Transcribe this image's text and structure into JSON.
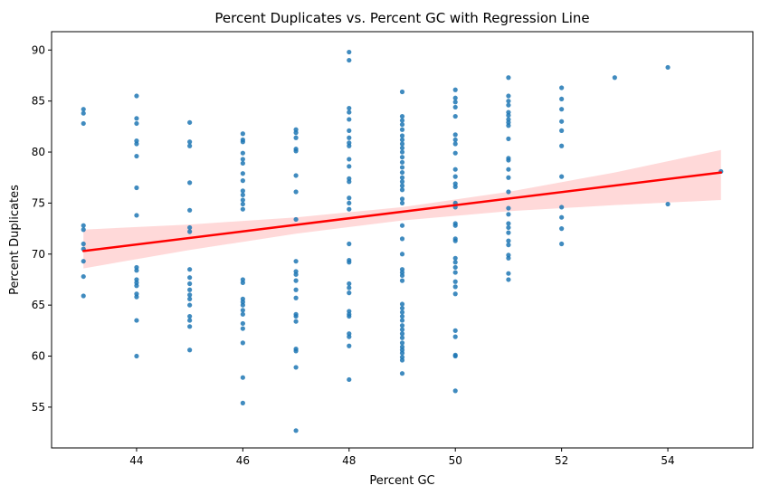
{
  "chart_data": {
    "type": "scatter",
    "title": "Percent Duplicates vs. Percent GC with Regression Line",
    "xlabel": "Percent GC",
    "ylabel": "Percent Duplicates",
    "xlim": [
      42.4,
      55.6
    ],
    "ylim": [
      51.0,
      91.8
    ],
    "xticks": [
      44,
      46,
      48,
      50,
      52,
      54
    ],
    "yticks": [
      55,
      60,
      65,
      70,
      75,
      80,
      85,
      90
    ],
    "grid": false,
    "legend": "none",
    "colors": {
      "points": "#1f77b4",
      "regression_line": "#ff0000",
      "confidence_band": "#ffcccc"
    },
    "regression": {
      "x": [
        43,
        55
      ],
      "y": [
        70.3,
        78.0
      ]
    },
    "confidence_band": {
      "x": [
        43,
        45,
        47,
        49,
        51,
        53,
        55
      ],
      "upper": [
        72.4,
        72.9,
        73.6,
        74.6,
        76.1,
        78.0,
        80.2
      ],
      "lower": [
        68.6,
        70.4,
        72.0,
        73.3,
        74.2,
        74.8,
        75.3
      ]
    },
    "points": [
      {
        "x": 43,
        "y": 84.2
      },
      {
        "x": 43,
        "y": 83.8
      },
      {
        "x": 43,
        "y": 82.8
      },
      {
        "x": 43,
        "y": 72.8
      },
      {
        "x": 43,
        "y": 72.4
      },
      {
        "x": 43,
        "y": 71.0
      },
      {
        "x": 43,
        "y": 70.5
      },
      {
        "x": 43,
        "y": 69.3
      },
      {
        "x": 43,
        "y": 67.8
      },
      {
        "x": 43,
        "y": 65.9
      },
      {
        "x": 44,
        "y": 85.5
      },
      {
        "x": 44,
        "y": 83.3
      },
      {
        "x": 44,
        "y": 82.8
      },
      {
        "x": 44,
        "y": 81.1
      },
      {
        "x": 44,
        "y": 80.8
      },
      {
        "x": 44,
        "y": 79.6
      },
      {
        "x": 44,
        "y": 76.5
      },
      {
        "x": 44,
        "y": 73.8
      },
      {
        "x": 44,
        "y": 68.7
      },
      {
        "x": 44,
        "y": 68.4
      },
      {
        "x": 44,
        "y": 67.5
      },
      {
        "x": 44,
        "y": 67.2
      },
      {
        "x": 44,
        "y": 66.9
      },
      {
        "x": 44,
        "y": 66.1
      },
      {
        "x": 44,
        "y": 65.8
      },
      {
        "x": 44,
        "y": 63.5
      },
      {
        "x": 44,
        "y": 60.0
      },
      {
        "x": 45,
        "y": 82.9
      },
      {
        "x": 45,
        "y": 81.0
      },
      {
        "x": 45,
        "y": 80.6
      },
      {
        "x": 45,
        "y": 77.0
      },
      {
        "x": 45,
        "y": 74.3
      },
      {
        "x": 45,
        "y": 72.6
      },
      {
        "x": 45,
        "y": 72.2
      },
      {
        "x": 45,
        "y": 68.5
      },
      {
        "x": 45,
        "y": 67.7
      },
      {
        "x": 45,
        "y": 67.1
      },
      {
        "x": 45,
        "y": 66.5
      },
      {
        "x": 45,
        "y": 66.0
      },
      {
        "x": 45,
        "y": 65.6
      },
      {
        "x": 45,
        "y": 65.0
      },
      {
        "x": 45,
        "y": 63.9
      },
      {
        "x": 45,
        "y": 63.5
      },
      {
        "x": 45,
        "y": 62.9
      },
      {
        "x": 45,
        "y": 60.6
      },
      {
        "x": 46,
        "y": 81.8
      },
      {
        "x": 46,
        "y": 81.2
      },
      {
        "x": 46,
        "y": 81.0
      },
      {
        "x": 46,
        "y": 79.9
      },
      {
        "x": 46,
        "y": 79.3
      },
      {
        "x": 46,
        "y": 78.9
      },
      {
        "x": 46,
        "y": 77.9
      },
      {
        "x": 46,
        "y": 77.2
      },
      {
        "x": 46,
        "y": 76.2
      },
      {
        "x": 46,
        "y": 75.8
      },
      {
        "x": 46,
        "y": 75.3
      },
      {
        "x": 46,
        "y": 74.9
      },
      {
        "x": 46,
        "y": 74.4
      },
      {
        "x": 46,
        "y": 67.5
      },
      {
        "x": 46,
        "y": 67.2
      },
      {
        "x": 46,
        "y": 65.6
      },
      {
        "x": 46,
        "y": 65.3
      },
      {
        "x": 46,
        "y": 65.0
      },
      {
        "x": 46,
        "y": 64.5
      },
      {
        "x": 46,
        "y": 64.1
      },
      {
        "x": 46,
        "y": 63.2
      },
      {
        "x": 46,
        "y": 62.7
      },
      {
        "x": 46,
        "y": 61.3
      },
      {
        "x": 46,
        "y": 57.9
      },
      {
        "x": 46,
        "y": 55.4
      },
      {
        "x": 47,
        "y": 82.2
      },
      {
        "x": 47,
        "y": 81.9
      },
      {
        "x": 47,
        "y": 81.4
      },
      {
        "x": 47,
        "y": 80.3
      },
      {
        "x": 47,
        "y": 80.1
      },
      {
        "x": 47,
        "y": 77.7
      },
      {
        "x": 47,
        "y": 76.1
      },
      {
        "x": 47,
        "y": 73.4
      },
      {
        "x": 47,
        "y": 69.3
      },
      {
        "x": 47,
        "y": 68.3
      },
      {
        "x": 47,
        "y": 68.0
      },
      {
        "x": 47,
        "y": 67.4
      },
      {
        "x": 47,
        "y": 66.5
      },
      {
        "x": 47,
        "y": 65.7
      },
      {
        "x": 47,
        "y": 64.1
      },
      {
        "x": 47,
        "y": 63.9
      },
      {
        "x": 47,
        "y": 63.4
      },
      {
        "x": 47,
        "y": 60.7
      },
      {
        "x": 47,
        "y": 60.5
      },
      {
        "x": 47,
        "y": 58.9
      },
      {
        "x": 47,
        "y": 52.7
      },
      {
        "x": 48,
        "y": 89.8
      },
      {
        "x": 48,
        "y": 89.0
      },
      {
        "x": 48,
        "y": 84.3
      },
      {
        "x": 48,
        "y": 83.9
      },
      {
        "x": 48,
        "y": 83.2
      },
      {
        "x": 48,
        "y": 82.1
      },
      {
        "x": 48,
        "y": 81.4
      },
      {
        "x": 48,
        "y": 80.9
      },
      {
        "x": 48,
        "y": 80.6
      },
      {
        "x": 48,
        "y": 79.3
      },
      {
        "x": 48,
        "y": 78.6
      },
      {
        "x": 48,
        "y": 77.4
      },
      {
        "x": 48,
        "y": 77.1
      },
      {
        "x": 48,
        "y": 75.5
      },
      {
        "x": 48,
        "y": 75.0
      },
      {
        "x": 48,
        "y": 74.4
      },
      {
        "x": 48,
        "y": 71.0
      },
      {
        "x": 48,
        "y": 69.4
      },
      {
        "x": 48,
        "y": 69.2
      },
      {
        "x": 48,
        "y": 67.1
      },
      {
        "x": 48,
        "y": 66.7
      },
      {
        "x": 48,
        "y": 66.2
      },
      {
        "x": 48,
        "y": 64.4
      },
      {
        "x": 48,
        "y": 64.1
      },
      {
        "x": 48,
        "y": 63.9
      },
      {
        "x": 48,
        "y": 62.2
      },
      {
        "x": 48,
        "y": 61.9
      },
      {
        "x": 48,
        "y": 61.0
      },
      {
        "x": 48,
        "y": 57.7
      },
      {
        "x": 49,
        "y": 85.9
      },
      {
        "x": 49,
        "y": 83.5
      },
      {
        "x": 49,
        "y": 83.1
      },
      {
        "x": 49,
        "y": 82.7
      },
      {
        "x": 49,
        "y": 82.2
      },
      {
        "x": 49,
        "y": 81.6
      },
      {
        "x": 49,
        "y": 81.2
      },
      {
        "x": 49,
        "y": 80.8
      },
      {
        "x": 49,
        "y": 80.4
      },
      {
        "x": 49,
        "y": 80.0
      },
      {
        "x": 49,
        "y": 79.5
      },
      {
        "x": 49,
        "y": 79.0
      },
      {
        "x": 49,
        "y": 78.5
      },
      {
        "x": 49,
        "y": 78.0
      },
      {
        "x": 49,
        "y": 77.5
      },
      {
        "x": 49,
        "y": 77.1
      },
      {
        "x": 49,
        "y": 76.7
      },
      {
        "x": 49,
        "y": 76.3
      },
      {
        "x": 49,
        "y": 75.4
      },
      {
        "x": 49,
        "y": 75.0
      },
      {
        "x": 49,
        "y": 72.8
      },
      {
        "x": 49,
        "y": 71.5
      },
      {
        "x": 49,
        "y": 70.0
      },
      {
        "x": 49,
        "y": 68.5
      },
      {
        "x": 49,
        "y": 68.2
      },
      {
        "x": 49,
        "y": 67.9
      },
      {
        "x": 49,
        "y": 67.4
      },
      {
        "x": 49,
        "y": 65.1
      },
      {
        "x": 49,
        "y": 64.7
      },
      {
        "x": 49,
        "y": 64.3
      },
      {
        "x": 49,
        "y": 63.9
      },
      {
        "x": 49,
        "y": 63.5
      },
      {
        "x": 49,
        "y": 63.0
      },
      {
        "x": 49,
        "y": 62.6
      },
      {
        "x": 49,
        "y": 62.2
      },
      {
        "x": 49,
        "y": 61.8
      },
      {
        "x": 49,
        "y": 61.3
      },
      {
        "x": 49,
        "y": 60.9
      },
      {
        "x": 49,
        "y": 60.6
      },
      {
        "x": 49,
        "y": 60.3
      },
      {
        "x": 49,
        "y": 59.9
      },
      {
        "x": 49,
        "y": 59.6
      },
      {
        "x": 49,
        "y": 58.3
      },
      {
        "x": 50,
        "y": 86.1
      },
      {
        "x": 50,
        "y": 85.3
      },
      {
        "x": 50,
        "y": 84.9
      },
      {
        "x": 50,
        "y": 84.4
      },
      {
        "x": 50,
        "y": 83.5
      },
      {
        "x": 50,
        "y": 81.7
      },
      {
        "x": 50,
        "y": 81.2
      },
      {
        "x": 50,
        "y": 80.8
      },
      {
        "x": 50,
        "y": 79.9
      },
      {
        "x": 50,
        "y": 78.3
      },
      {
        "x": 50,
        "y": 77.6
      },
      {
        "x": 50,
        "y": 76.9
      },
      {
        "x": 50,
        "y": 76.6
      },
      {
        "x": 50,
        "y": 75.0
      },
      {
        "x": 50,
        "y": 74.6
      },
      {
        "x": 50,
        "y": 73.0
      },
      {
        "x": 50,
        "y": 72.8
      },
      {
        "x": 50,
        "y": 71.5
      },
      {
        "x": 50,
        "y": 71.3
      },
      {
        "x": 50,
        "y": 69.6
      },
      {
        "x": 50,
        "y": 69.2
      },
      {
        "x": 50,
        "y": 68.7
      },
      {
        "x": 50,
        "y": 68.2
      },
      {
        "x": 50,
        "y": 67.3
      },
      {
        "x": 50,
        "y": 66.8
      },
      {
        "x": 50,
        "y": 66.1
      },
      {
        "x": 50,
        "y": 62.5
      },
      {
        "x": 50,
        "y": 61.9
      },
      {
        "x": 50,
        "y": 60.1
      },
      {
        "x": 50,
        "y": 60.0
      },
      {
        "x": 50,
        "y": 56.6
      },
      {
        "x": 51,
        "y": 87.3
      },
      {
        "x": 51,
        "y": 85.5
      },
      {
        "x": 51,
        "y": 85.0
      },
      {
        "x": 51,
        "y": 84.6
      },
      {
        "x": 51,
        "y": 83.9
      },
      {
        "x": 51,
        "y": 83.6
      },
      {
        "x": 51,
        "y": 83.2
      },
      {
        "x": 51,
        "y": 82.9
      },
      {
        "x": 51,
        "y": 82.6
      },
      {
        "x": 51,
        "y": 81.3
      },
      {
        "x": 51,
        "y": 79.4
      },
      {
        "x": 51,
        "y": 79.2
      },
      {
        "x": 51,
        "y": 78.3
      },
      {
        "x": 51,
        "y": 77.5
      },
      {
        "x": 51,
        "y": 76.1
      },
      {
        "x": 51,
        "y": 74.5
      },
      {
        "x": 51,
        "y": 73.9
      },
      {
        "x": 51,
        "y": 73.0
      },
      {
        "x": 51,
        "y": 72.6
      },
      {
        "x": 51,
        "y": 72.1
      },
      {
        "x": 51,
        "y": 71.3
      },
      {
        "x": 51,
        "y": 70.9
      },
      {
        "x": 51,
        "y": 69.9
      },
      {
        "x": 51,
        "y": 69.6
      },
      {
        "x": 51,
        "y": 68.1
      },
      {
        "x": 51,
        "y": 67.5
      },
      {
        "x": 52,
        "y": 86.3
      },
      {
        "x": 52,
        "y": 85.2
      },
      {
        "x": 52,
        "y": 84.2
      },
      {
        "x": 52,
        "y": 83.0
      },
      {
        "x": 52,
        "y": 82.1
      },
      {
        "x": 52,
        "y": 80.6
      },
      {
        "x": 52,
        "y": 77.6
      },
      {
        "x": 52,
        "y": 74.6
      },
      {
        "x": 52,
        "y": 73.6
      },
      {
        "x": 52,
        "y": 72.5
      },
      {
        "x": 52,
        "y": 71.0
      },
      {
        "x": 53,
        "y": 87.3
      },
      {
        "x": 54,
        "y": 88.3
      },
      {
        "x": 54,
        "y": 74.9
      },
      {
        "x": 55,
        "y": 78.1
      }
    ]
  }
}
